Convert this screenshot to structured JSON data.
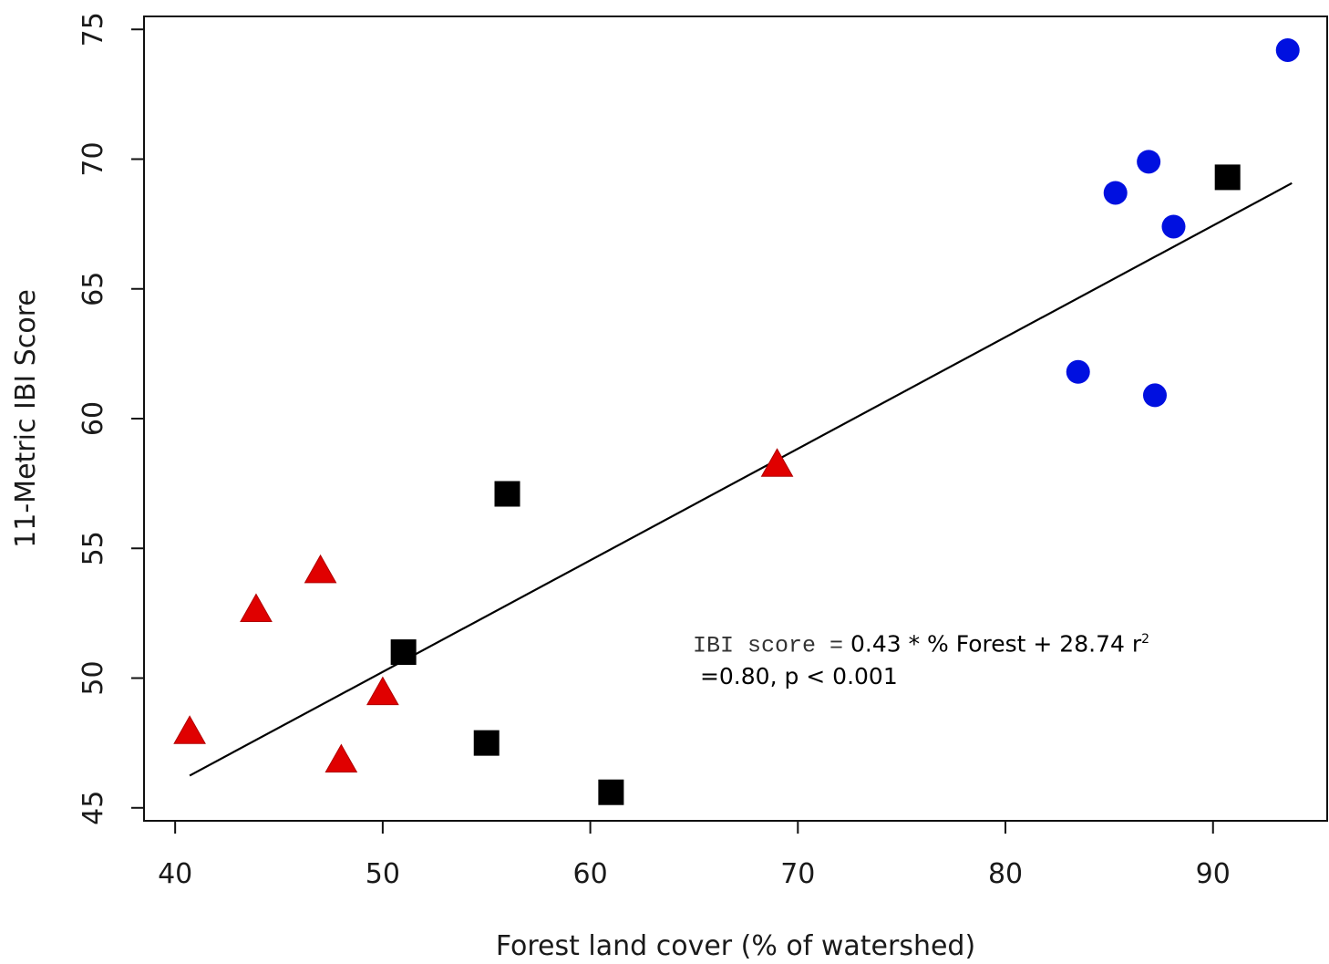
{
  "chart_data": {
    "type": "scatter",
    "xlabel": "Forest land cover (% of watershed)",
    "ylabel": "11-Metric IBI Score",
    "xlim": [
      38.5,
      95.5
    ],
    "ylim": [
      44.5,
      75.5
    ],
    "xticks": [
      40,
      50,
      60,
      70,
      80,
      90
    ],
    "yticks": [
      45,
      50,
      55,
      60,
      65,
      70,
      75
    ],
    "xtick_labels": [
      "40",
      "50",
      "60",
      "70",
      "80",
      "90"
    ],
    "ytick_labels": [
      "45",
      "50",
      "55",
      "60",
      "65",
      "70",
      "75"
    ],
    "series": [
      {
        "marker": "triangle",
        "color": "#e00000",
        "points": [
          [
            40.7,
            47.9
          ],
          [
            43.9,
            52.6
          ],
          [
            47.0,
            54.1
          ],
          [
            48.0,
            46.8
          ],
          [
            50.0,
            49.4
          ],
          [
            69.0,
            58.2
          ]
        ]
      },
      {
        "marker": "square",
        "color": "#000000",
        "points": [
          [
            51.0,
            51.0
          ],
          [
            55.0,
            47.5
          ],
          [
            56.0,
            57.1
          ],
          [
            61.0,
            45.6
          ],
          [
            90.7,
            69.3
          ]
        ]
      },
      {
        "marker": "circle",
        "color": "#0010e0",
        "points": [
          [
            83.5,
            61.8
          ],
          [
            85.3,
            68.7
          ],
          [
            86.9,
            69.9
          ],
          [
            87.2,
            60.9
          ],
          [
            88.1,
            67.4
          ],
          [
            93.6,
            74.2
          ]
        ]
      }
    ],
    "regression": {
      "slope": 0.43,
      "intercept": 28.74,
      "x_range": [
        40.7,
        93.8
      ]
    },
    "annotation": {
      "prefix": "IBI score =",
      "equation": "0.43 * % Forest + 28.74 r",
      "superscript": "2",
      "stats": "=0.80, p < 0.001"
    }
  }
}
